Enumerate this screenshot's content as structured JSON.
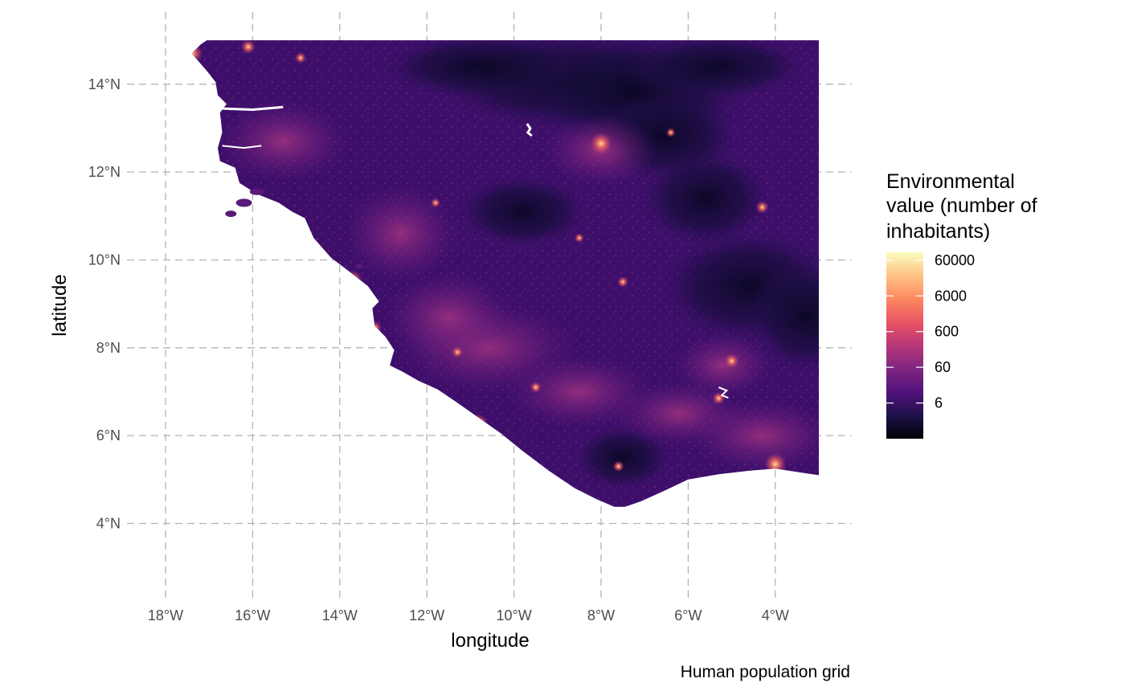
{
  "chart_data": {
    "type": "heatmap",
    "title": "",
    "xlabel": "longitude",
    "ylabel": "latitude",
    "caption": "Human population grid",
    "x_ticks": [
      "18°W",
      "16°W",
      "14°W",
      "12°W",
      "10°W",
      "8°W",
      "6°W",
      "4°W"
    ],
    "x_tick_values": [
      -18,
      -16,
      -14,
      -12,
      -10,
      -8,
      -6,
      -4
    ],
    "y_ticks": [
      "4°N",
      "6°N",
      "8°N",
      "10°N",
      "12°N",
      "14°N"
    ],
    "y_tick_values": [
      4,
      6,
      8,
      10,
      12,
      14
    ],
    "xlim": [
      -18.6,
      -2.6
    ],
    "ylim": [
      2.4,
      15.1
    ],
    "grid": true,
    "scale": "log",
    "colormap": "magma",
    "legend": {
      "placement": "right",
      "title_lines": [
        "Environmental",
        "value (number of",
        "inhabitants)"
      ],
      "labels": [
        "60000",
        "6000",
        "600",
        "60",
        "6"
      ],
      "values": [
        60000,
        6000,
        600,
        60,
        6
      ]
    },
    "colors": [
      "#000004",
      "#1d1147",
      "#51127c",
      "#822681",
      "#b73779",
      "#e75263",
      "#fc8961",
      "#fec488",
      "#fcfdbf"
    ],
    "ocean_color": "#ffffff"
  }
}
